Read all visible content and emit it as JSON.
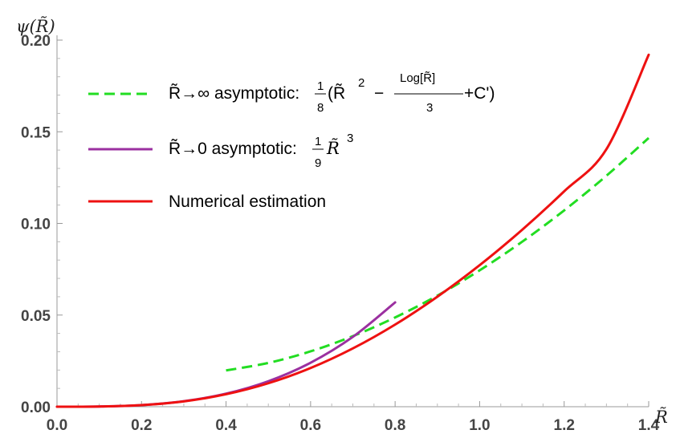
{
  "chart_data": {
    "type": "line",
    "xlabel": "R̃",
    "ylabel": "ψ(R̃)",
    "xlim": [
      0.0,
      1.4
    ],
    "ylim": [
      0.0,
      0.2
    ],
    "x_ticks": [
      "0.0",
      "0.2",
      "0.4",
      "0.6",
      "0.8",
      "1.0",
      "1.2",
      "1.4"
    ],
    "y_ticks": [
      "0.00",
      "0.05",
      "0.10",
      "0.15",
      "0.20"
    ],
    "legend_position": "top-left",
    "grid": false,
    "series": [
      {
        "name": "R̃→∞ asymptotic: 1/8(R̃² − Log[R̃]/3 + C')",
        "color": "#22dd22",
        "style": "dashed",
        "x": [
          0.4,
          0.5,
          0.6,
          0.7,
          0.8,
          0.9,
          1.0,
          1.1,
          1.2,
          1.3,
          1.4
        ],
        "y": [
          0.0198,
          0.0239,
          0.0302,
          0.0385,
          0.0487,
          0.0606,
          0.0744,
          0.0899,
          0.1071,
          0.126,
          0.1466
        ]
      },
      {
        "name": "R̃→0 asymptotic: 1/9 R̃³",
        "color": "#9b30a0",
        "style": "solid",
        "x": [
          0.0,
          0.1,
          0.2,
          0.3,
          0.4,
          0.5,
          0.6,
          0.7,
          0.8
        ],
        "y": [
          0.0,
          0.000111,
          0.000889,
          0.003,
          0.00711,
          0.0139,
          0.024,
          0.0381,
          0.0569
        ]
      },
      {
        "name": "Numerical estimation",
        "color": "#ee1111",
        "style": "solid",
        "x": [
          0.0,
          0.1,
          0.2,
          0.3,
          0.4,
          0.5,
          0.6,
          0.7,
          0.8,
          0.9,
          1.0,
          1.1,
          1.2,
          1.3,
          1.4
        ],
        "y": [
          0.0,
          0.0001,
          0.00088,
          0.0029,
          0.0068,
          0.0128,
          0.0211,
          0.0318,
          0.0448,
          0.06,
          0.0772,
          0.0964,
          0.1175,
          0.1405,
          0.192
        ]
      }
    ],
    "legend": {
      "inf_lhs": "R̃→∞ asymptotic:",
      "inf_num": "1",
      "inf_den": "8",
      "inf_open": "(R̃",
      "inf_pow": "2",
      "inf_minus": "−",
      "inf_log": "Log[R̃]",
      "inf_log_den": "3",
      "inf_rest": "+C')",
      "zero_lhs": "R̃→0 asymptotic:",
      "zero_num": "1",
      "zero_den": "9",
      "zero_var": "R̃",
      "zero_pow": "3",
      "num_label": "Numerical  estimation"
    }
  }
}
